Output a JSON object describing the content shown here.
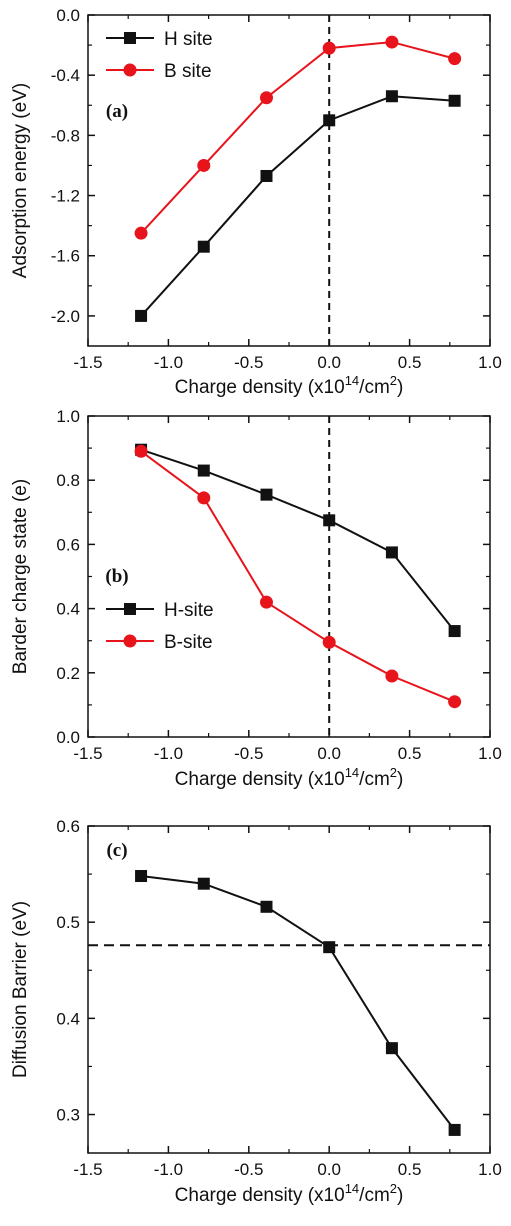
{
  "colors": {
    "h_series": "#111111",
    "b_series": "#e8141c",
    "axis": "#111111"
  },
  "chart_data": [
    {
      "type": "line",
      "panel_label": "(a)",
      "xlabel": {
        "prefix": "Charge density (x10",
        "sup1": "14",
        "mid": "/cm",
        "sup2": "2",
        "suffix": ")"
      },
      "ylabel": "Adsorption energy (eV)",
      "xlim": [
        -1.5,
        1.0
      ],
      "ylim": [
        -2.2,
        0.0
      ],
      "xticks": [
        -1.5,
        -1.0,
        -0.5,
        0.0,
        0.5,
        1.0
      ],
      "xtick_labels": [
        "-1.5",
        "-1.0",
        "-0.5",
        "0.0",
        "0.5",
        "1.0"
      ],
      "yticks": [
        -2.0,
        -1.6,
        -1.2,
        -0.8,
        -0.4,
        0.0
      ],
      "ytick_labels": [
        "-2.0",
        "-1.6",
        "-1.2",
        "-0.8",
        "-0.4",
        "0.0"
      ],
      "reference_line": {
        "orientation": "vertical",
        "value": 0.0
      },
      "legend_position": "top-left",
      "series": [
        {
          "name": "H site",
          "color_key": "h_series",
          "marker": "square",
          "x": [
            -1.17,
            -0.78,
            -0.39,
            0.0,
            0.39,
            0.78
          ],
          "y": [
            -2.0,
            -1.54,
            -1.07,
            -0.7,
            -0.54,
            -0.57
          ]
        },
        {
          "name": "B site",
          "color_key": "b_series",
          "marker": "circle",
          "x": [
            -1.17,
            -0.78,
            -0.39,
            0.0,
            0.39,
            0.78
          ],
          "y": [
            -1.45,
            -1.0,
            -0.55,
            -0.22,
            -0.18,
            -0.29
          ]
        }
      ]
    },
    {
      "type": "line",
      "panel_label": "(b)",
      "xlabel": {
        "prefix": "Charge density (x10",
        "sup1": "14",
        "mid": "/cm",
        "sup2": "2",
        "suffix": ")"
      },
      "ylabel": "Barder charge state (e)",
      "xlim": [
        -1.5,
        1.0
      ],
      "ylim": [
        0.0,
        1.0
      ],
      "xticks": [
        -1.5,
        -1.0,
        -0.5,
        0.0,
        0.5,
        1.0
      ],
      "xtick_labels": [
        "-1.5",
        "-1.0",
        "-0.5",
        "0.0",
        "0.5",
        "1.0"
      ],
      "yticks": [
        0.0,
        0.2,
        0.4,
        0.6,
        0.8,
        1.0
      ],
      "ytick_labels": [
        "0.0",
        "0.2",
        "0.4",
        "0.6",
        "0.8",
        "1.0"
      ],
      "reference_line": {
        "orientation": "vertical",
        "value": 0.0
      },
      "legend_position": "lower-left",
      "series": [
        {
          "name": "H-site",
          "color_key": "h_series",
          "marker": "square",
          "x": [
            -1.17,
            -0.78,
            -0.39,
            0.0,
            0.39,
            0.78
          ],
          "y": [
            0.895,
            0.83,
            0.755,
            0.675,
            0.575,
            0.33
          ]
        },
        {
          "name": "B-site",
          "color_key": "b_series",
          "marker": "circle",
          "x": [
            -1.17,
            -0.78,
            -0.39,
            0.0,
            0.39,
            0.78
          ],
          "y": [
            0.89,
            0.745,
            0.42,
            0.295,
            0.19,
            0.11
          ]
        }
      ]
    },
    {
      "type": "line",
      "panel_label": "(c)",
      "xlabel": {
        "prefix": "Charge density (x10",
        "sup1": "14",
        "mid": "/cm",
        "sup2": "2",
        "suffix": ")"
      },
      "ylabel": "Diffusion Barrier (eV)",
      "xlim": [
        -1.5,
        1.0
      ],
      "ylim": [
        0.26,
        0.6
      ],
      "xticks": [
        -1.5,
        -1.0,
        -0.5,
        0.0,
        0.5,
        1.0
      ],
      "xtick_labels": [
        "-1.5",
        "-1.0",
        "-0.5",
        "0.0",
        "0.5",
        "1.0"
      ],
      "yticks": [
        0.3,
        0.4,
        0.5,
        0.6
      ],
      "ytick_labels": [
        "0.3",
        "0.4",
        "0.5",
        "0.6"
      ],
      "reference_line": {
        "orientation": "horizontal",
        "value": 0.476
      },
      "legend_position": "none",
      "series": [
        {
          "name": "",
          "color_key": "h_series",
          "marker": "square",
          "x": [
            -1.17,
            -0.78,
            -0.39,
            0.0,
            0.39,
            0.78
          ],
          "y": [
            0.548,
            0.54,
            0.516,
            0.474,
            0.369,
            0.284
          ]
        }
      ]
    }
  ]
}
